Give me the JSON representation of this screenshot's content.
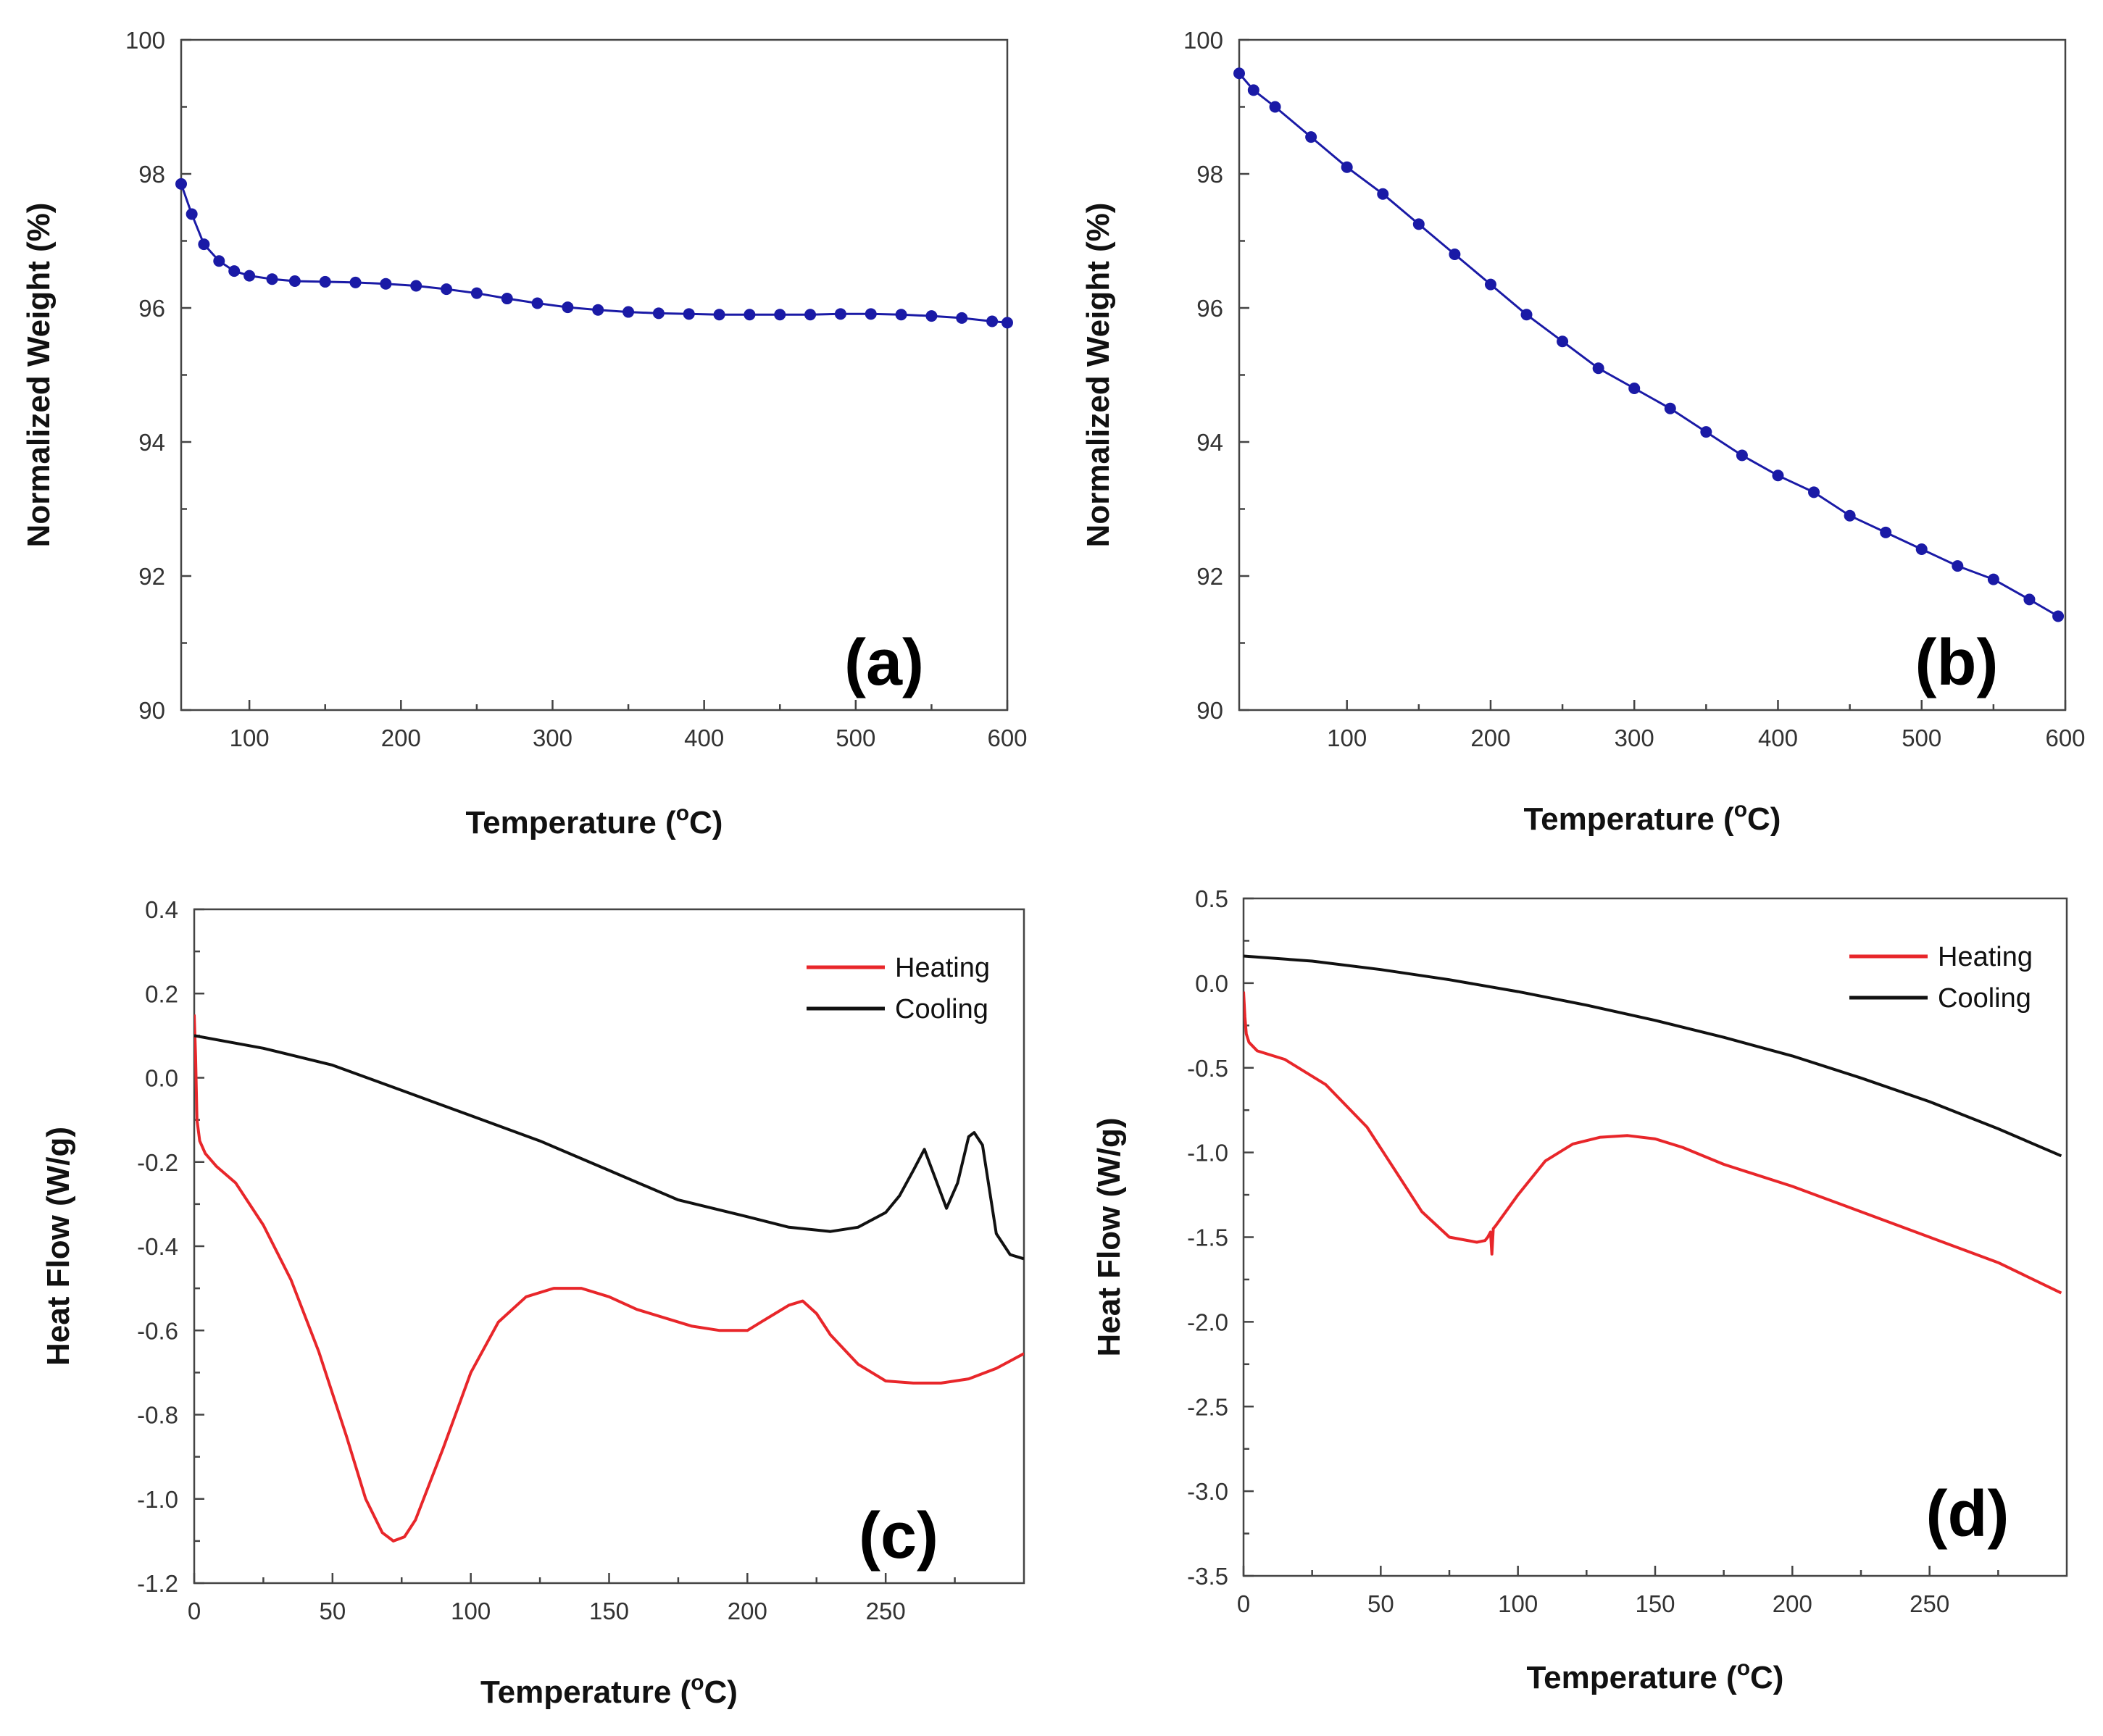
{
  "chart_data": [
    {
      "type": "line",
      "panel_label": "(a)",
      "xlabel": "Temperature (°C)",
      "xlabel_main": "Temperature (",
      "xlabel_sup": "o",
      "xlabel_unit": "C)",
      "ylabel": "Normalized Weight (%)",
      "xlim": [
        55,
        600
      ],
      "ylim": [
        90,
        100
      ],
      "x_ticks": [
        100,
        200,
        300,
        400,
        500,
        600
      ],
      "y_ticks": [
        90,
        92,
        94,
        96,
        98,
        100
      ],
      "markers": true,
      "series": [
        {
          "color": "#1a1aa6",
          "x": [
            55,
            62,
            70,
            80,
            90,
            100,
            115,
            130,
            150,
            170,
            190,
            210,
            230,
            250,
            270,
            290,
            310,
            330,
            350,
            370,
            390,
            410,
            430,
            450,
            470,
            490,
            510,
            530,
            550,
            570,
            590,
            600
          ],
          "y": [
            97.85,
            97.4,
            96.95,
            96.7,
            96.55,
            96.48,
            96.43,
            96.4,
            96.39,
            96.38,
            96.36,
            96.33,
            96.28,
            96.22,
            96.14,
            96.07,
            96.01,
            95.97,
            95.94,
            95.92,
            95.91,
            95.9,
            95.9,
            95.9,
            95.9,
            95.91,
            95.91,
            95.9,
            95.88,
            95.85,
            95.8,
            95.78
          ]
        }
      ]
    },
    {
      "type": "line",
      "panel_label": "(b)",
      "xlabel": "Temperature (°C)",
      "xlabel_main": "Temperature (",
      "xlabel_sup": "o",
      "xlabel_unit": "C)",
      "ylabel": "Normalized Weight (%)",
      "xlim": [
        25,
        600
      ],
      "ylim": [
        90,
        100
      ],
      "x_ticks": [
        100,
        200,
        300,
        400,
        500,
        600
      ],
      "y_ticks": [
        90,
        92,
        94,
        96,
        98,
        100
      ],
      "markers": true,
      "series": [
        {
          "color": "#1a1aa6",
          "x": [
            25,
            35,
            50,
            75,
            100,
            125,
            150,
            175,
            200,
            225,
            250,
            275,
            300,
            325,
            350,
            375,
            400,
            425,
            450,
            475,
            500,
            525,
            550,
            575,
            595
          ],
          "y": [
            99.5,
            99.25,
            99.0,
            98.55,
            98.1,
            97.7,
            97.25,
            96.8,
            96.35,
            95.9,
            95.5,
            95.1,
            94.8,
            94.5,
            94.15,
            93.8,
            93.5,
            93.25,
            92.9,
            92.65,
            92.4,
            92.15,
            91.95,
            91.65,
            91.4
          ]
        }
      ]
    },
    {
      "type": "line",
      "panel_label": "(c)",
      "xlabel": "Temperature (°C)",
      "xlabel_main": "Temperature (",
      "xlabel_sup": "o",
      "xlabel_unit": "C)",
      "ylabel": "Heat Flow (W/g)",
      "xlim": [
        0,
        300
      ],
      "ylim": [
        -1.2,
        0.4
      ],
      "x_ticks": [
        0,
        50,
        100,
        150,
        200,
        250
      ],
      "y_ticks": [
        -1.2,
        -1.0,
        -0.8,
        -0.6,
        -0.4,
        -0.2,
        0.0,
        0.2,
        0.4
      ],
      "y_tick_labels": [
        "-1.2",
        "-1.0",
        "-0.8",
        "-0.6",
        "-0.4",
        "-0.2",
        "0.0",
        "0.2",
        "0.4"
      ],
      "legend": "top-right",
      "series": [
        {
          "name": "Heating",
          "color": "#e8262a",
          "x": [
            0,
            0.5,
            1,
            2,
            4,
            8,
            15,
            25,
            35,
            45,
            55,
            62,
            68,
            72,
            76,
            80,
            90,
            100,
            110,
            120,
            130,
            140,
            150,
            160,
            170,
            180,
            190,
            200,
            205,
            210,
            215,
            220,
            225,
            230,
            240,
            250,
            260,
            270,
            280,
            290,
            300
          ],
          "y": [
            0.15,
            0.05,
            -0.1,
            -0.15,
            -0.18,
            -0.21,
            -0.25,
            -0.35,
            -0.48,
            -0.65,
            -0.85,
            -1.0,
            -1.08,
            -1.1,
            -1.09,
            -1.05,
            -0.88,
            -0.7,
            -0.58,
            -0.52,
            -0.5,
            -0.5,
            -0.52,
            -0.55,
            -0.57,
            -0.59,
            -0.6,
            -0.6,
            -0.58,
            -0.56,
            -0.54,
            -0.53,
            -0.56,
            -0.61,
            -0.68,
            -0.72,
            -0.725,
            -0.725,
            -0.715,
            -0.69,
            -0.655
          ]
        },
        {
          "name": "Cooling",
          "color": "#111111",
          "x": [
            0,
            25,
            50,
            75,
            100,
            125,
            150,
            175,
            200,
            215,
            230,
            240,
            250,
            255,
            260,
            264,
            268,
            272,
            276,
            280,
            282,
            285,
            290,
            295,
            300
          ],
          "y": [
            0.1,
            0.07,
            0.03,
            -0.03,
            -0.09,
            -0.15,
            -0.22,
            -0.29,
            -0.33,
            -0.355,
            -0.365,
            -0.355,
            -0.32,
            -0.28,
            -0.22,
            -0.17,
            -0.24,
            -0.31,
            -0.25,
            -0.14,
            -0.13,
            -0.16,
            -0.37,
            -0.42,
            -0.43
          ]
        }
      ]
    },
    {
      "type": "line",
      "panel_label": "(d)",
      "xlabel": "Temperature (°C)",
      "xlabel_main": "Temperature (",
      "xlabel_sup": "o",
      "xlabel_unit": "C)",
      "ylabel": "Heat Flow (W/g)",
      "xlim": [
        0,
        300
      ],
      "ylim": [
        -3.5,
        0.5
      ],
      "x_ticks": [
        0,
        50,
        100,
        150,
        200,
        250
      ],
      "y_ticks": [
        -3.5,
        -3.0,
        -2.5,
        -2.0,
        -1.5,
        -1.0,
        -0.5,
        0.0,
        0.5
      ],
      "y_tick_labels": [
        "-3.5",
        "-3.0",
        "-2.5",
        "-2.0",
        "-1.5",
        "-1.0",
        "-0.5",
        "0.0",
        "0.5"
      ],
      "legend": "top-right",
      "series": [
        {
          "name": "Heating",
          "color": "#e8262a",
          "x": [
            0,
            0.5,
            1,
            2,
            5,
            15,
            30,
            45,
            55,
            65,
            75,
            85,
            88,
            89,
            90,
            90.5,
            91,
            92,
            100,
            110,
            120,
            130,
            140,
            150,
            160,
            175,
            200,
            225,
            250,
            275,
            298
          ],
          "y": [
            -0.05,
            -0.2,
            -0.3,
            -0.35,
            -0.4,
            -0.45,
            -0.6,
            -0.85,
            -1.1,
            -1.35,
            -1.5,
            -1.53,
            -1.52,
            -1.5,
            -1.47,
            -1.6,
            -1.45,
            -1.43,
            -1.25,
            -1.05,
            -0.95,
            -0.91,
            -0.9,
            -0.92,
            -0.97,
            -1.07,
            -1.2,
            -1.35,
            -1.5,
            -1.65,
            -1.83
          ]
        },
        {
          "name": "Cooling",
          "color": "#111111",
          "x": [
            0,
            25,
            50,
            75,
            100,
            125,
            150,
            175,
            200,
            225,
            250,
            275,
            298
          ],
          "y": [
            0.16,
            0.13,
            0.08,
            0.02,
            -0.05,
            -0.13,
            -0.22,
            -0.32,
            -0.43,
            -0.56,
            -0.7,
            -0.86,
            -1.02
          ]
        }
      ]
    }
  ]
}
